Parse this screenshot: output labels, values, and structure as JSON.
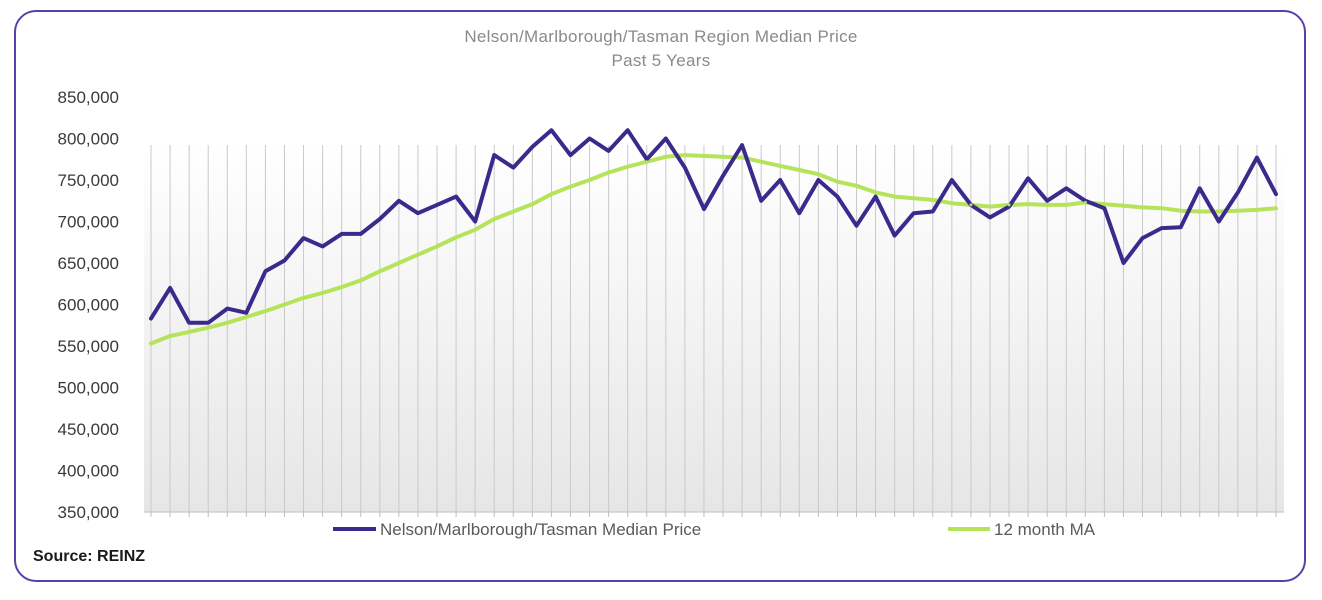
{
  "chart_data": {
    "type": "line",
    "title": "Nelson/Marlborough/Tasman  Region Median Price",
    "subtitle": "Past 5 Years",
    "xlabel": "",
    "ylabel": "",
    "ylim": [
      350000,
      850000
    ],
    "y_ticks": [
      350000,
      400000,
      450000,
      500000,
      550000,
      600000,
      650000,
      700000,
      750000,
      800000,
      850000
    ],
    "y_tick_labels": [
      "350,000",
      "400,000",
      "450,000",
      "500,000",
      "550,000",
      "600,000",
      "650,000",
      "700,000",
      "750,000",
      "800,000",
      "850,000"
    ],
    "grid": "vertical lines",
    "legend_position": "bottom",
    "series": [
      {
        "name": "Nelson/Marlborough/Tasman Median Price",
        "color": "#3a2a8c",
        "values": [
          583000,
          620000,
          578000,
          578000,
          595000,
          590000,
          640000,
          653000,
          680000,
          670000,
          685000,
          685000,
          703000,
          725000,
          710000,
          720000,
          730000,
          700000,
          780000,
          765000,
          790000,
          810000,
          780000,
          800000,
          785000,
          810000,
          775000,
          800000,
          765000,
          715000,
          755000,
          792000,
          725000,
          750000,
          710000,
          750000,
          730000,
          695000,
          730000,
          683000,
          710000,
          712000,
          750000,
          720000,
          705000,
          718000,
          752000,
          725000,
          740000,
          725000,
          716000,
          650000,
          680000,
          692000,
          693000,
          740000,
          700000,
          735000,
          777000,
          733000
        ]
      },
      {
        "name": "12 month MA",
        "color": "#b5e35a",
        "values": [
          553000,
          562000,
          567000,
          572000,
          578000,
          585000,
          592000,
          600000,
          608000,
          614000,
          621000,
          629000,
          640000,
          650000,
          660000,
          670000,
          681000,
          690000,
          703000,
          712000,
          721000,
          733000,
          742000,
          750000,
          759000,
          766000,
          772000,
          778000,
          780000,
          779000,
          778000,
          777000,
          772000,
          767000,
          762000,
          757000,
          748000,
          743000,
          735000,
          730000,
          728000,
          726000,
          722000,
          720000,
          718000,
          720000,
          721000,
          720000,
          720000,
          723000,
          721000,
          719000,
          717000,
          716000,
          713000,
          712000,
          712000,
          713000,
          714000,
          716000
        ]
      }
    ]
  },
  "source": "Source: REINZ"
}
